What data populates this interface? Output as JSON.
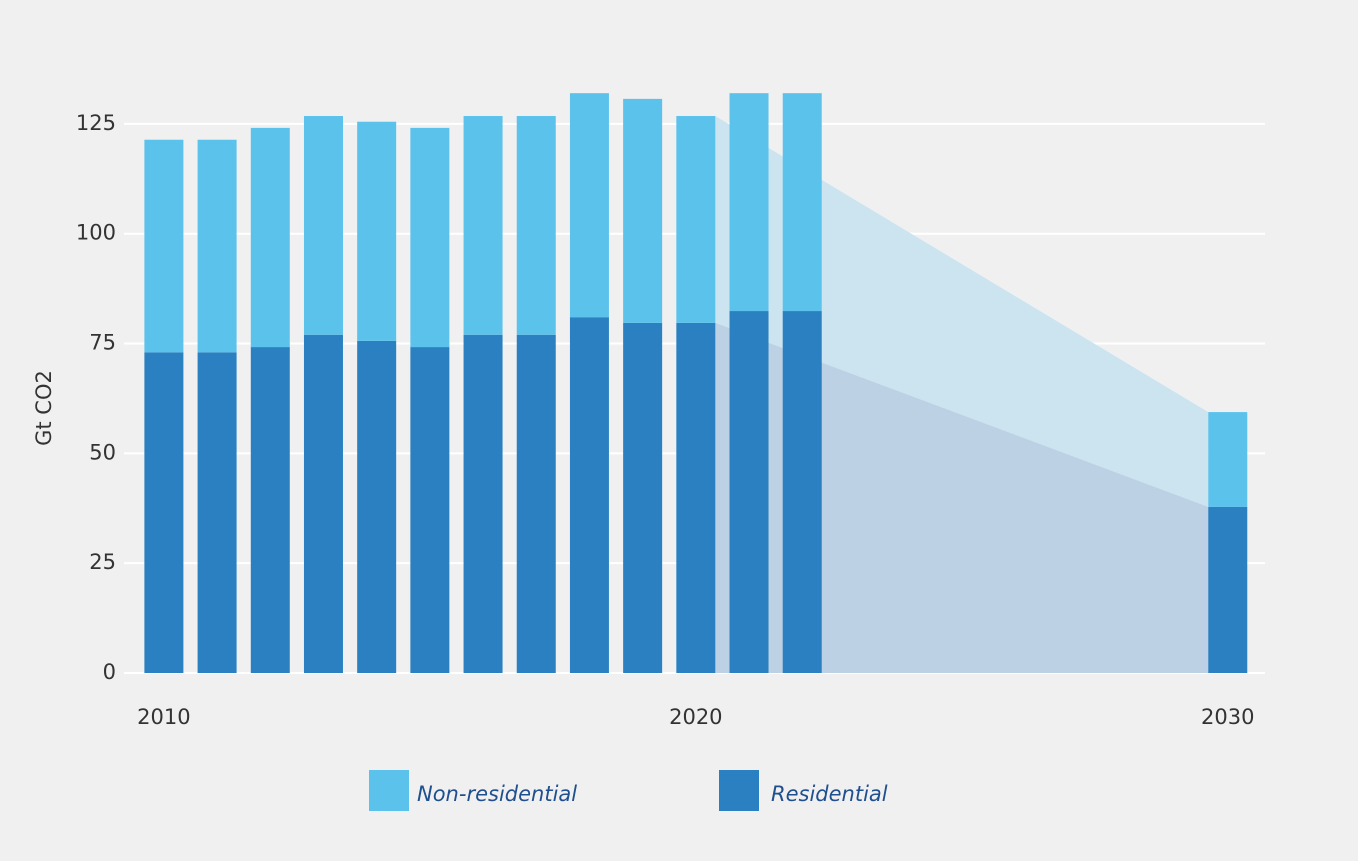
{
  "chart_data": {
    "type": "bar",
    "stacked": true,
    "y_label": "Gt CO2",
    "x": [
      2010,
      2011,
      2012,
      2013,
      2014,
      2015,
      2016,
      2017,
      2018,
      2019,
      2020,
      2021,
      2022,
      2030
    ],
    "series": [
      {
        "name": "Residential",
        "color": "#2a80c0",
        "values": [
          73,
          73,
          74.2,
          77,
          75.6,
          74.2,
          77,
          77,
          81,
          79.7,
          79.7,
          82.4,
          82.4,
          37.8
        ]
      },
      {
        "name": "Non-residential",
        "color": "#5bc2ec",
        "values": [
          48.4,
          48.4,
          49.9,
          49.8,
          49.9,
          49.9,
          49.8,
          49.8,
          51,
          51,
          47.1,
          49.6,
          49.6,
          21.6
        ]
      }
    ],
    "areas": [
      {
        "color": "#cce4ef",
        "x": [
          2020,
          2030
        ],
        "values": [
          126.8,
          59.4
        ]
      },
      {
        "color": "#bcd2e4",
        "x": [
          2020,
          2030
        ],
        "values": [
          79.7,
          37.8
        ]
      }
    ],
    "xlim": [
      2009.25,
      2030.7
    ],
    "xticks": [
      2010,
      2020,
      2030
    ],
    "ylim": [
      0,
      135
    ],
    "yticks": [
      0,
      25,
      50,
      75,
      100,
      125
    ],
    "grid": true
  }
}
